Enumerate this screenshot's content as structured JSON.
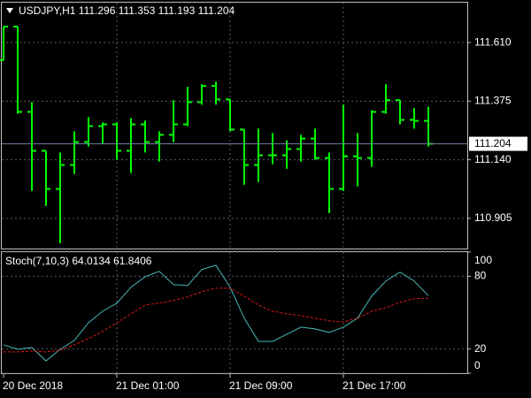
{
  "chart_data": [
    {
      "type": "ohlc",
      "title": "USDJPY,H1  111.296 111.353 111.193 111.204",
      "categories": [
        "20 Dec 2018",
        null,
        null,
        null,
        null,
        null,
        null,
        null,
        "21 Dec 01:00",
        null,
        null,
        null,
        null,
        null,
        null,
        null,
        "21 Dec 09:00",
        null,
        null,
        null,
        null,
        null,
        null,
        null,
        "21 Dec 17:00",
        null,
        null,
        null,
        null,
        null,
        null
      ],
      "open": [
        111.539,
        111.674,
        111.332,
        111.176,
        111.023,
        111.119,
        111.211,
        111.275,
        111.282,
        111.176,
        111.282,
        111.211,
        111.24,
        111.282,
        111.371,
        111.436,
        111.382,
        111.261,
        111.119,
        111.158,
        111.158,
        111.183,
        111.225,
        111.147,
        111.023,
        111.154,
        111.147,
        111.332,
        111.379,
        111.3,
        111.296
      ],
      "high": [
        111.674,
        111.674,
        111.371,
        111.176,
        111.169,
        111.254,
        111.311,
        111.29,
        111.29,
        111.307,
        111.297,
        111.254,
        111.379,
        111.432,
        111.443,
        111.453,
        111.382,
        111.261,
        111.265,
        111.247,
        111.218,
        111.24,
        111.265,
        111.169,
        111.361,
        111.247,
        111.339,
        111.443,
        111.379,
        111.347,
        111.353
      ],
      "low": [
        111.539,
        111.325,
        111.015,
        110.955,
        110.805,
        111.083,
        111.193,
        111.204,
        111.14,
        111.087,
        111.169,
        111.133,
        111.211,
        111.275,
        111.361,
        111.361,
        111.254,
        111.04,
        111.051,
        111.122,
        111.104,
        111.133,
        111.14,
        110.926,
        111.015,
        111.033,
        111.112,
        111.325,
        111.282,
        111.265,
        111.193
      ],
      "close": [
        111.674,
        111.332,
        111.176,
        111.023,
        111.119,
        111.211,
        111.275,
        111.282,
        111.176,
        111.282,
        111.211,
        111.24,
        111.282,
        111.371,
        111.436,
        111.382,
        111.261,
        111.119,
        111.158,
        111.158,
        111.183,
        111.225,
        111.147,
        111.023,
        111.154,
        111.147,
        111.332,
        111.379,
        111.3,
        111.296,
        111.204
      ],
      "color": "#00ff00",
      "ylim": [
        110.784,
        111.77
      ],
      "yticks": [
        {
          "value": 111.61,
          "label": "111.610"
        },
        {
          "value": 111.375,
          "label": "111.375"
        },
        {
          "value": 111.14,
          "label": "111.140"
        },
        {
          "value": 110.905,
          "label": "110.905"
        }
      ],
      "last_price": 111.204,
      "grid": true
    },
    {
      "type": "line",
      "title": "Stoch(7,10,3) 64.0134 61.8406",
      "series": [
        {
          "color": "#48b8b8",
          "dashed": false,
          "values": [
            23.4,
            19.8,
            21.2,
            10.2,
            19.8,
            27.1,
            41.7,
            51.2,
            57.8,
            71.0,
            79.7,
            84.1,
            73.2,
            72.4,
            85.6,
            89.2,
            71.0,
            45.4,
            26.3,
            26.3,
            32.2,
            38.0,
            36.6,
            33.7,
            38.0,
            45.4,
            63.7,
            76.1,
            83.4,
            76.1,
            64.0134
          ]
        },
        {
          "color": "#e01818",
          "dashed": true,
          "values": [
            17.6,
            17.6,
            18.3,
            17.6,
            19.0,
            23.4,
            28.5,
            34.4,
            41.7,
            49.0,
            56.3,
            58.0,
            60.0,
            62.9,
            67.3,
            70.2,
            70.2,
            63.6,
            56.3,
            51.2,
            49.0,
            47.5,
            45.4,
            43.2,
            42.4,
            45.4,
            51.2,
            54.1,
            58.5,
            61.5,
            61.8406
          ]
        }
      ],
      "ylim": [
        0,
        100
      ],
      "yticks": [
        0,
        20,
        80,
        100
      ],
      "grid": true
    }
  ]
}
